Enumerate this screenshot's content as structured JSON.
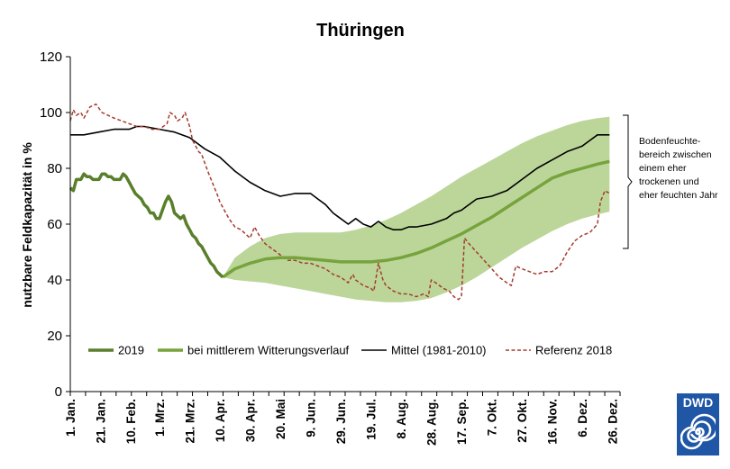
{
  "chart_data": {
    "type": "line",
    "title": "Thüringen",
    "xlabel": "",
    "ylabel": "nutzbare Feldkapazität in %",
    "ylim": [
      0,
      120
    ],
    "yticks": [
      0,
      20,
      40,
      60,
      80,
      100,
      120
    ],
    "x_domain_days": [
      1,
      365
    ],
    "x_tick_labels": [
      "1. Jan.",
      "21. Jan.",
      "10. Feb.",
      "1. Mrz.",
      "21. Mrz.",
      "10. Apr.",
      "30. Apr.",
      "20. Mai",
      "9. Jun.",
      "29. Jun.",
      "19. Jul.",
      "8. Aug.",
      "28. Aug.",
      "17. Sep.",
      "7. Okt.",
      "27. Okt.",
      "16. Nov.",
      "6. Dez.",
      "26. Dez."
    ],
    "x_tick_days": [
      1,
      21,
      41,
      60,
      80,
      100,
      120,
      140,
      160,
      180,
      200,
      220,
      240,
      260,
      280,
      300,
      320,
      340,
      360
    ],
    "grid": false,
    "legend_position": "bottom-inside",
    "series": [
      {
        "name": "2019",
        "color": "#5a7f2c",
        "style": "solid-thick",
        "points": [
          [
            1,
            73
          ],
          [
            3,
            72
          ],
          [
            5,
            76
          ],
          [
            8,
            76
          ],
          [
            10,
            78
          ],
          [
            12,
            77
          ],
          [
            14,
            77
          ],
          [
            16,
            76
          ],
          [
            18,
            76
          ],
          [
            20,
            76
          ],
          [
            22,
            78
          ],
          [
            24,
            78
          ],
          [
            26,
            77
          ],
          [
            28,
            77
          ],
          [
            30,
            76
          ],
          [
            32,
            76
          ],
          [
            34,
            76
          ],
          [
            36,
            78
          ],
          [
            38,
            77
          ],
          [
            40,
            75
          ],
          [
            42,
            73
          ],
          [
            44,
            71
          ],
          [
            46,
            70
          ],
          [
            48,
            69
          ],
          [
            50,
            67
          ],
          [
            52,
            66
          ],
          [
            54,
            64
          ],
          [
            56,
            64
          ],
          [
            58,
            62
          ],
          [
            60,
            62
          ],
          [
            62,
            65
          ],
          [
            64,
            68
          ],
          [
            66,
            70
          ],
          [
            68,
            68
          ],
          [
            70,
            64
          ],
          [
            72,
            63
          ],
          [
            74,
            62
          ],
          [
            76,
            63
          ],
          [
            78,
            60
          ],
          [
            80,
            58
          ],
          [
            82,
            56
          ],
          [
            84,
            55
          ],
          [
            86,
            53
          ],
          [
            88,
            52
          ],
          [
            90,
            50
          ],
          [
            92,
            48
          ],
          [
            94,
            46
          ],
          [
            96,
            45
          ],
          [
            98,
            43
          ],
          [
            100,
            42
          ],
          [
            102,
            41
          ]
        ]
      },
      {
        "name": "bei mittlerem Witterungsverlauf",
        "color": "#77a33c",
        "band_color": "#bcd69a",
        "style": "solid-thick",
        "points": [
          [
            102,
            41
          ],
          [
            110,
            44
          ],
          [
            120,
            46
          ],
          [
            130,
            47.5
          ],
          [
            140,
            48
          ],
          [
            150,
            48
          ],
          [
            160,
            47.5
          ],
          [
            170,
            47
          ],
          [
            180,
            46.5
          ],
          [
            190,
            46.5
          ],
          [
            200,
            46.5
          ],
          [
            210,
            47
          ],
          [
            220,
            48
          ],
          [
            230,
            49.5
          ],
          [
            240,
            51.5
          ],
          [
            250,
            54
          ],
          [
            260,
            56.5
          ],
          [
            270,
            59.5
          ],
          [
            280,
            62.5
          ],
          [
            290,
            66
          ],
          [
            300,
            69.5
          ],
          [
            310,
            73
          ],
          [
            320,
            76.5
          ],
          [
            330,
            78.5
          ],
          [
            340,
            80
          ],
          [
            350,
            81.5
          ],
          [
            358,
            82.5
          ]
        ],
        "band_upper": [
          [
            102,
            41
          ],
          [
            110,
            48
          ],
          [
            120,
            52
          ],
          [
            130,
            55
          ],
          [
            140,
            56.5
          ],
          [
            150,
            57
          ],
          [
            160,
            57
          ],
          [
            170,
            57
          ],
          [
            180,
            57
          ],
          [
            190,
            58
          ],
          [
            200,
            59.5
          ],
          [
            210,
            61.5
          ],
          [
            220,
            64
          ],
          [
            230,
            67
          ],
          [
            240,
            70
          ],
          [
            250,
            73.5
          ],
          [
            260,
            77
          ],
          [
            270,
            80
          ],
          [
            280,
            83
          ],
          [
            290,
            86
          ],
          [
            300,
            89
          ],
          [
            310,
            91.5
          ],
          [
            320,
            93.5
          ],
          [
            330,
            95.5
          ],
          [
            340,
            97
          ],
          [
            350,
            98
          ],
          [
            358,
            98.5
          ]
        ],
        "band_lower": [
          [
            102,
            41
          ],
          [
            110,
            40
          ],
          [
            120,
            39.5
          ],
          [
            130,
            39
          ],
          [
            140,
            38
          ],
          [
            150,
            37
          ],
          [
            160,
            36
          ],
          [
            170,
            35
          ],
          [
            180,
            34
          ],
          [
            190,
            33
          ],
          [
            200,
            32.5
          ],
          [
            210,
            32
          ],
          [
            220,
            32
          ],
          [
            230,
            32.5
          ],
          [
            240,
            33.5
          ],
          [
            250,
            35.5
          ],
          [
            260,
            38
          ],
          [
            270,
            41
          ],
          [
            280,
            44.5
          ],
          [
            290,
            48
          ],
          [
            300,
            51.5
          ],
          [
            310,
            54.5
          ],
          [
            320,
            57.5
          ],
          [
            330,
            60
          ],
          [
            340,
            62
          ],
          [
            350,
            63.5
          ],
          [
            358,
            64.5
          ]
        ]
      },
      {
        "name": "Mittel (1981-2010)",
        "color": "#000000",
        "style": "solid-thin",
        "points": [
          [
            1,
            92
          ],
          [
            10,
            92
          ],
          [
            20,
            93
          ],
          [
            30,
            94
          ],
          [
            40,
            94
          ],
          [
            45,
            95
          ],
          [
            50,
            95
          ],
          [
            60,
            94
          ],
          [
            70,
            93
          ],
          [
            80,
            91
          ],
          [
            90,
            87
          ],
          [
            100,
            84
          ],
          [
            110,
            79
          ],
          [
            120,
            75
          ],
          [
            130,
            72
          ],
          [
            135,
            71
          ],
          [
            140,
            70
          ],
          [
            150,
            71
          ],
          [
            160,
            71
          ],
          [
            165,
            69
          ],
          [
            170,
            67
          ],
          [
            175,
            64
          ],
          [
            180,
            62
          ],
          [
            185,
            60
          ],
          [
            190,
            62
          ],
          [
            195,
            60
          ],
          [
            200,
            59
          ],
          [
            205,
            61
          ],
          [
            210,
            59
          ],
          [
            215,
            58
          ],
          [
            220,
            58
          ],
          [
            225,
            59
          ],
          [
            230,
            59
          ],
          [
            240,
            60
          ],
          [
            250,
            62
          ],
          [
            255,
            64
          ],
          [
            260,
            65
          ],
          [
            270,
            69
          ],
          [
            280,
            70
          ],
          [
            290,
            72
          ],
          [
            300,
            76
          ],
          [
            310,
            80
          ],
          [
            320,
            83
          ],
          [
            330,
            86
          ],
          [
            340,
            88
          ],
          [
            345,
            90
          ],
          [
            350,
            92
          ],
          [
            358,
            92
          ]
        ]
      },
      {
        "name": "Referenz 2018",
        "color": "#a43c2e",
        "style": "dashed",
        "points": [
          [
            1,
            97
          ],
          [
            3,
            101
          ],
          [
            5,
            99
          ],
          [
            8,
            100
          ],
          [
            10,
            98
          ],
          [
            14,
            102
          ],
          [
            18,
            103
          ],
          [
            22,
            100
          ],
          [
            26,
            99
          ],
          [
            30,
            98
          ],
          [
            35,
            97
          ],
          [
            40,
            96
          ],
          [
            45,
            95
          ],
          [
            50,
            95
          ],
          [
            55,
            94
          ],
          [
            60,
            94
          ],
          [
            65,
            96
          ],
          [
            67,
            100
          ],
          [
            70,
            99
          ],
          [
            72,
            97
          ],
          [
            75,
            98
          ],
          [
            77,
            100
          ],
          [
            80,
            95
          ],
          [
            82,
            90
          ],
          [
            84,
            88
          ],
          [
            86,
            86
          ],
          [
            88,
            85
          ],
          [
            90,
            82
          ],
          [
            92,
            79
          ],
          [
            95,
            75
          ],
          [
            98,
            71
          ],
          [
            100,
            68
          ],
          [
            103,
            65
          ],
          [
            106,
            62
          ],
          [
            110,
            59
          ],
          [
            114,
            58
          ],
          [
            118,
            56
          ],
          [
            120,
            55
          ],
          [
            123,
            59
          ],
          [
            126,
            56
          ],
          [
            130,
            53
          ],
          [
            135,
            51
          ],
          [
            140,
            49
          ],
          [
            145,
            47
          ],
          [
            150,
            47
          ],
          [
            155,
            46
          ],
          [
            160,
            46
          ],
          [
            165,
            45
          ],
          [
            170,
            44
          ],
          [
            175,
            42
          ],
          [
            180,
            41
          ],
          [
            185,
            39
          ],
          [
            188,
            42
          ],
          [
            190,
            40
          ],
          [
            195,
            38
          ],
          [
            200,
            37
          ],
          [
            202,
            36
          ],
          [
            205,
            46
          ],
          [
            208,
            40
          ],
          [
            210,
            38
          ],
          [
            215,
            36
          ],
          [
            220,
            35
          ],
          [
            225,
            35
          ],
          [
            230,
            34
          ],
          [
            235,
            35
          ],
          [
            238,
            34
          ],
          [
            240,
            40
          ],
          [
            243,
            39
          ],
          [
            248,
            37
          ],
          [
            252,
            36
          ],
          [
            255,
            34
          ],
          [
            258,
            33
          ],
          [
            260,
            34
          ],
          [
            262,
            55
          ],
          [
            265,
            53
          ],
          [
            270,
            50
          ],
          [
            275,
            47
          ],
          [
            280,
            44
          ],
          [
            285,
            41
          ],
          [
            290,
            39
          ],
          [
            293,
            38
          ],
          [
            296,
            45
          ],
          [
            300,
            44
          ],
          [
            305,
            43
          ],
          [
            310,
            42
          ],
          [
            315,
            43
          ],
          [
            320,
            43
          ],
          [
            325,
            45
          ],
          [
            330,
            50
          ],
          [
            335,
            54
          ],
          [
            340,
            56
          ],
          [
            345,
            57
          ],
          [
            350,
            60
          ],
          [
            352,
            68
          ],
          [
            355,
            72
          ],
          [
            358,
            71
          ]
        ]
      }
    ],
    "annotation": [
      "Bodenfeuchte-",
      "bereich zwischen",
      "einem eher",
      "trockenen und",
      "eher feuchten Jahr"
    ]
  },
  "logo": {
    "text": "DWD",
    "color": "#1f56a6"
  }
}
